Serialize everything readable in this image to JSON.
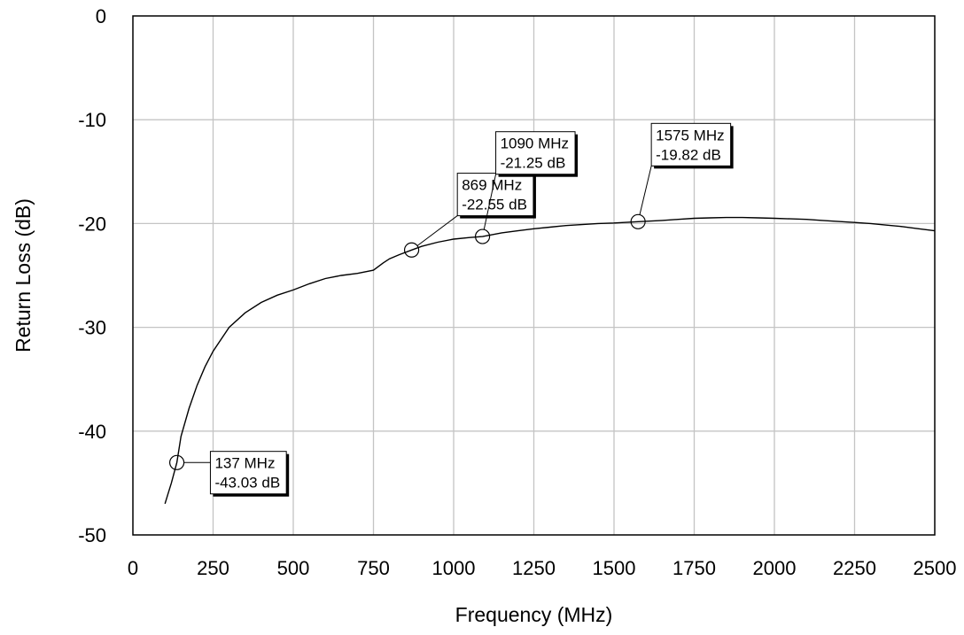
{
  "chart_data": {
    "type": "line",
    "title": "",
    "xlabel": "Frequency (MHz)",
    "ylabel": "Return Loss (dB)",
    "xlim": [
      0,
      2500
    ],
    "ylim": [
      -50,
      0
    ],
    "xticks": [
      0,
      250,
      500,
      750,
      1000,
      1250,
      1500,
      1750,
      2000,
      2250,
      2500
    ],
    "yticks": [
      0,
      -10,
      -20,
      -30,
      -40,
      -50
    ],
    "grid": true,
    "series": [
      {
        "x": [
          100,
          110,
          120,
          137,
          150,
          175,
          200,
          225,
          250,
          300,
          350,
          400,
          450,
          500,
          550,
          600,
          650,
          700,
          750,
          780,
          800,
          830,
          869,
          900,
          950,
          1000,
          1050,
          1090,
          1150,
          1200,
          1250,
          1300,
          1350,
          1400,
          1450,
          1500,
          1575,
          1650,
          1700,
          1750,
          1800,
          1850,
          1900,
          1950,
          2000,
          2050,
          2100,
          2150,
          2200,
          2250,
          2300,
          2350,
          2400,
          2450,
          2500
        ],
        "y": [
          -47.0,
          -46.0,
          -45.0,
          -43.03,
          -40.5,
          -37.8,
          -35.6,
          -33.8,
          -32.3,
          -30.0,
          -28.6,
          -27.6,
          -26.9,
          -26.4,
          -25.8,
          -25.3,
          -25.0,
          -24.8,
          -24.5,
          -23.8,
          -23.4,
          -23.0,
          -22.55,
          -22.2,
          -21.8,
          -21.5,
          -21.35,
          -21.25,
          -20.9,
          -20.7,
          -20.5,
          -20.35,
          -20.2,
          -20.1,
          -20.0,
          -19.95,
          -19.82,
          -19.7,
          -19.6,
          -19.5,
          -19.45,
          -19.42,
          -19.42,
          -19.45,
          -19.5,
          -19.55,
          -19.6,
          -19.7,
          -19.8,
          -19.9,
          -20.0,
          -20.15,
          -20.3,
          -20.5,
          -20.7
        ]
      }
    ],
    "markers": [
      {
        "x": 137,
        "y": -43.03,
        "line1": "137 MHz",
        "line2": "-43.03 dB",
        "label_anchor": [
          360,
          -44.0
        ]
      },
      {
        "x": 869,
        "y": -22.55,
        "line1": "869 MHz",
        "line2": "-22.55 dB",
        "label_anchor": [
          1130,
          -17.2
        ]
      },
      {
        "x": 1090,
        "y": -21.25,
        "line1": "1090 MHz",
        "line2": "-21.25 dB",
        "label_anchor": [
          1255,
          -13.2
        ]
      },
      {
        "x": 1575,
        "y": -19.82,
        "line1": "1575 MHz",
        "line2": "-19.82 dB",
        "label_anchor": [
          1740,
          -12.4
        ]
      }
    ]
  }
}
